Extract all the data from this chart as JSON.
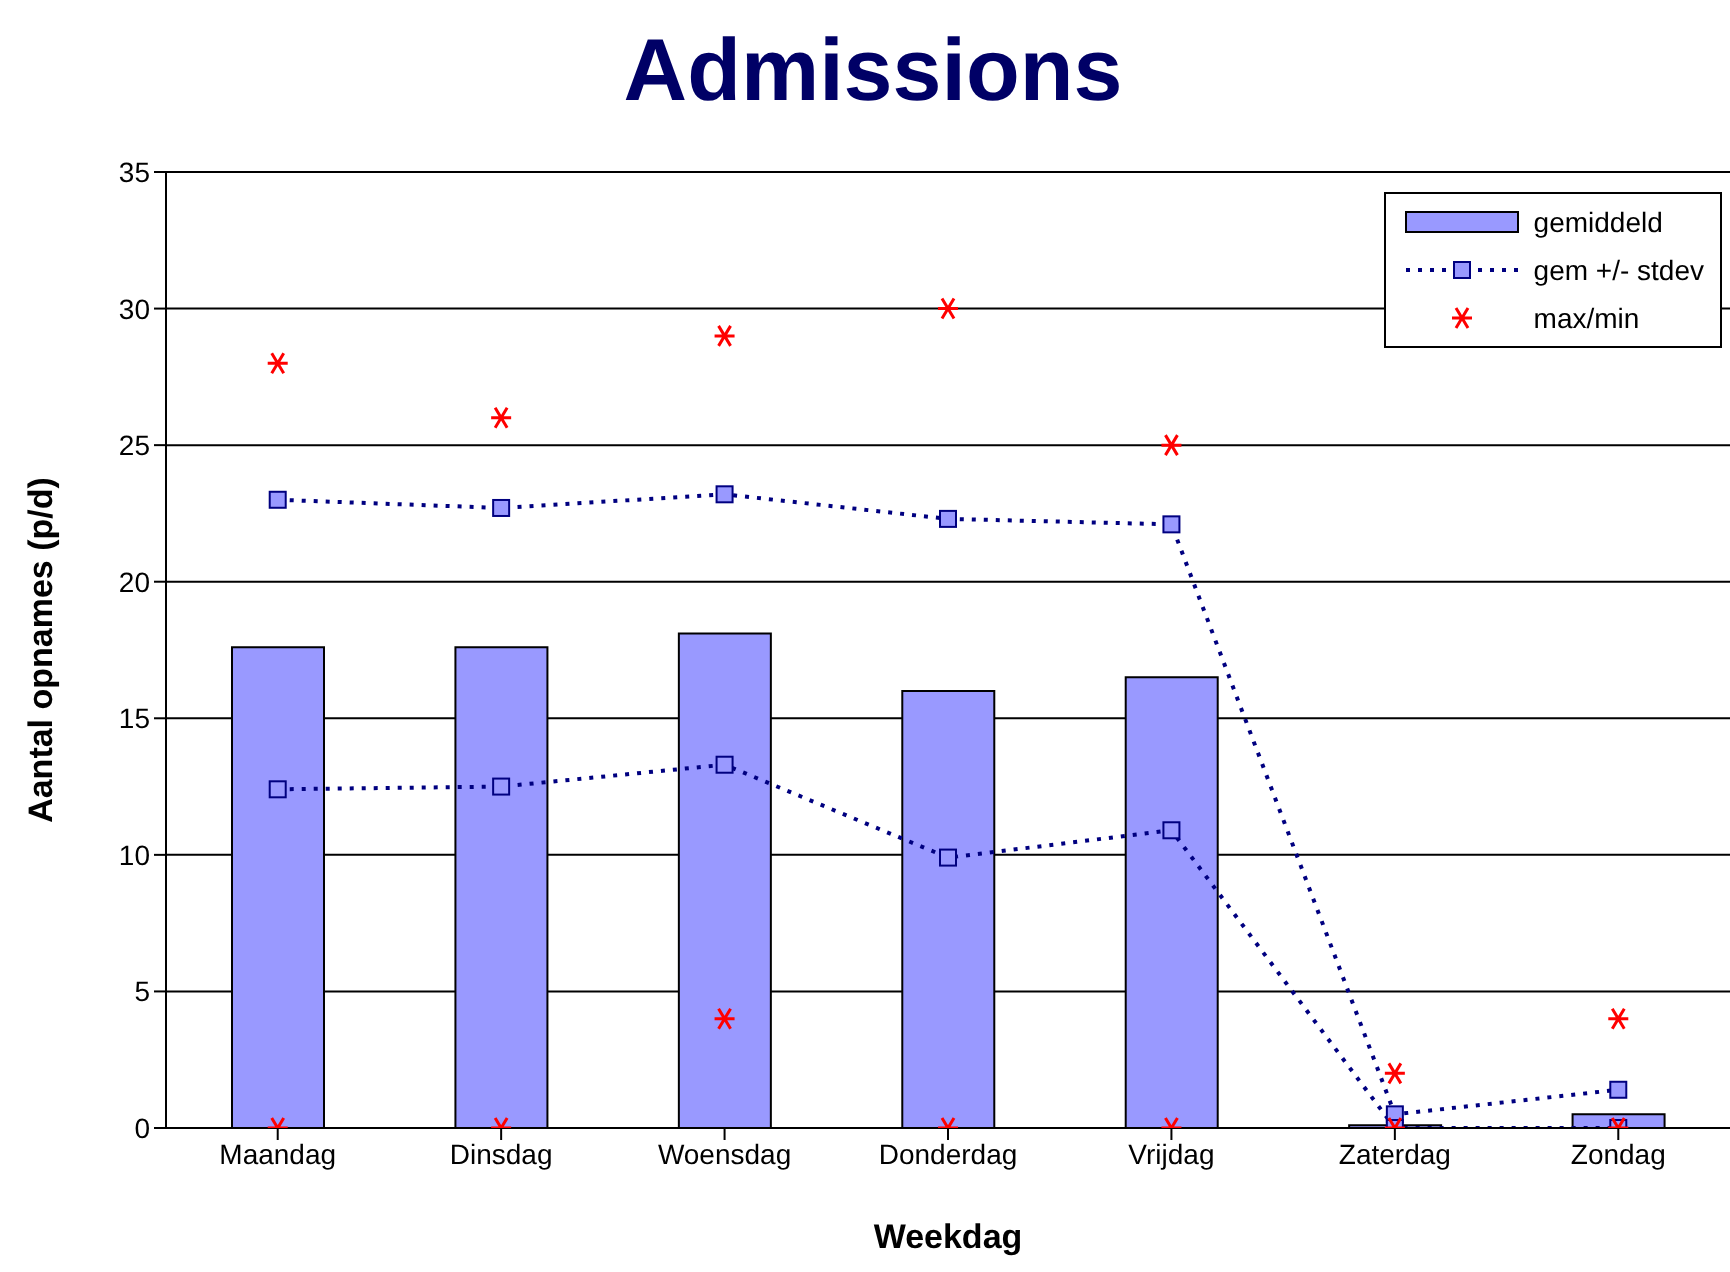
{
  "chart_data": {
    "type": "bar",
    "title": "Admissions",
    "xlabel": "Weekdag",
    "ylabel": "Aantal opnames (p/d)",
    "categories": [
      "Maandag",
      "Dinsdag",
      "Woensdag",
      "Donderdag",
      "Vrijdag",
      "Zaterdag",
      "Zondag"
    ],
    "series": [
      {
        "name": "gemiddeld",
        "color": "#9999ff",
        "values": [
          17.6,
          17.6,
          18.1,
          16.0,
          16.5,
          0.1,
          0.5
        ]
      },
      {
        "type": "line",
        "name": "gem +/- stdev",
        "color": "#000080",
        "marker": "square",
        "line_style": "dotted",
        "values": [
          23.0,
          22.7,
          23.2,
          22.3,
          22.1,
          0.5,
          1.4
        ]
      },
      {
        "type": "line",
        "color": "#000080",
        "marker": "square",
        "line_style": "dotted",
        "values": [
          12.4,
          12.5,
          13.3,
          9.9,
          10.9,
          0,
          0
        ]
      },
      {
        "type": "scatter",
        "name": "max/min",
        "color": "#ff0000",
        "marker": "cross",
        "x": [
          "Maandag",
          "Dinsdag",
          "Woensdag",
          "Donderdag",
          "Vrijdag",
          "Zaterdag",
          "Zondag",
          "Maandag",
          "Dinsdag",
          "Woensdag",
          "Donderdag",
          "Vrijdag",
          "Zaterdag",
          "Zondag"
        ],
        "values": [
          28,
          26,
          29,
          30,
          25,
          2,
          4,
          0,
          0,
          4,
          0,
          0,
          0,
          0
        ]
      }
    ],
    "ylim": [
      0,
      35
    ],
    "yticks": [
      0,
      5,
      10,
      15,
      20,
      25,
      30,
      35
    ],
    "grid": "y",
    "legend": "top right"
  }
}
